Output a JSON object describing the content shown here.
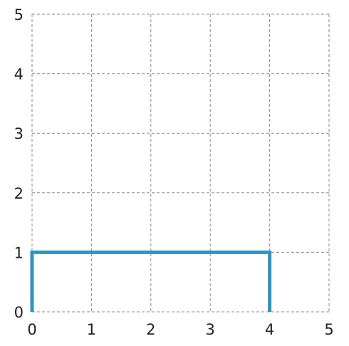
{
  "chart_data": {
    "type": "line",
    "title": "",
    "xlabel": "",
    "ylabel": "",
    "xlim": [
      0,
      5
    ],
    "ylim": [
      0,
      5
    ],
    "grid": true,
    "x_ticks": [
      "0",
      "1",
      "2",
      "3",
      "4",
      "5"
    ],
    "y_ticks": [
      "0",
      "1",
      "2",
      "3",
      "4",
      "5"
    ],
    "series": [
      {
        "x": [
          0,
          0,
          4,
          4
        ],
        "y": [
          0,
          1,
          1,
          0
        ],
        "color": "#2e93c1"
      }
    ]
  }
}
